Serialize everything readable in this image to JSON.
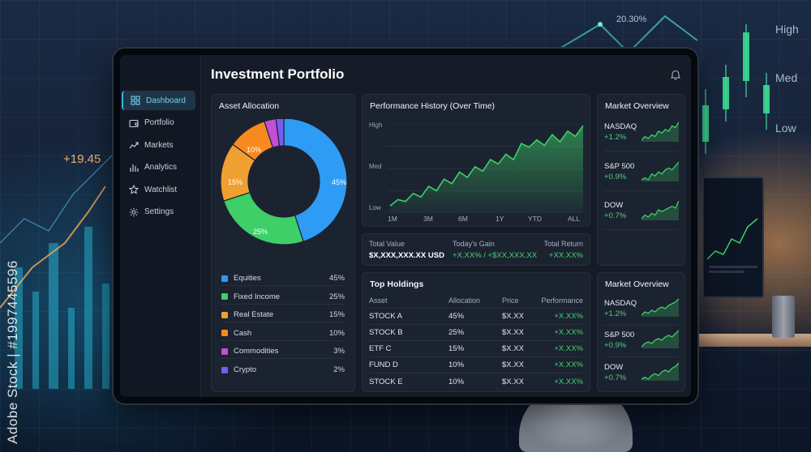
{
  "app": {
    "title": "Investment Portfolio"
  },
  "sidebar": {
    "items": [
      {
        "label": "Dashboard",
        "icon": "dashboard-grid-icon",
        "active": true
      },
      {
        "label": "Portfolio",
        "icon": "wallet-icon",
        "active": false
      },
      {
        "label": "Markets",
        "icon": "trend-line-icon",
        "active": false
      },
      {
        "label": "Analytics",
        "icon": "bar-chart-icon",
        "active": false
      },
      {
        "label": "Watchlist",
        "icon": "star-icon",
        "active": false
      },
      {
        "label": "Settings",
        "icon": "gear-icon",
        "active": false
      }
    ]
  },
  "allocation": {
    "title": "Asset Allocation",
    "items": [
      {
        "label": "Equities",
        "value": "45%",
        "percent": 45,
        "color": "#2e9cf5"
      },
      {
        "label": "Fixed Income",
        "value": "25%",
        "percent": 25,
        "color": "#3ecf68"
      },
      {
        "label": "Real Estate",
        "value": "15%",
        "percent": 15,
        "color": "#f0a030"
      },
      {
        "label": "Cash",
        "value": "10%",
        "percent": 10,
        "color": "#f78a1f"
      },
      {
        "label": "Commodities",
        "value": "3%",
        "percent": 3,
        "color": "#c24fd4"
      },
      {
        "label": "Crypto",
        "value": "2%",
        "percent": 2,
        "color": "#7a5cf0"
      }
    ]
  },
  "chart_data": {
    "type": "area",
    "title": "Performance History (Over Time)",
    "y_tick_labels": [
      "High",
      "Med",
      "Low"
    ],
    "x_tick_labels": [
      "1M",
      "3M",
      "6M",
      "1Y",
      "YTD",
      "ALL"
    ],
    "series": [
      {
        "values": [
          8,
          15,
          13,
          22,
          18,
          30,
          25,
          38,
          33,
          46,
          40,
          52,
          47,
          60,
          55,
          66,
          60,
          78,
          74,
          82,
          76,
          88,
          80,
          92,
          86,
          98
        ]
      }
    ],
    "ylim": [
      0,
      100
    ],
    "grid": true,
    "color": "#3ecf68"
  },
  "summary": {
    "total_value_label": "Total Value",
    "total_value": "$X,XXX,XXX.XX USD",
    "todays_gain_label": "Today's Gain",
    "todays_gain": "+X.XX% / +$XX,XXX.XX",
    "total_return_label": "Total Return",
    "total_return": "+XX.XX%"
  },
  "market_top": {
    "title": "Market Overview",
    "items": [
      {
        "name": "NASDAQ",
        "change": "+1.2%",
        "spark": [
          3,
          5,
          4,
          6,
          5,
          8,
          7,
          9,
          8,
          11,
          10,
          13
        ]
      },
      {
        "name": "S&P 500",
        "change": "+0.9%",
        "spark": [
          3,
          4,
          3,
          6,
          5,
          7,
          6,
          8,
          9,
          8,
          10,
          12
        ]
      },
      {
        "name": "DOW",
        "change": "+0.7%",
        "spark": [
          2,
          4,
          3,
          5,
          4,
          7,
          6,
          7,
          8,
          9,
          8,
          12
        ]
      }
    ]
  },
  "market_bottom": {
    "title": "Market Overview",
    "items": [
      {
        "name": "NASDAQ",
        "change": "+1.2%",
        "spark": [
          3,
          5,
          4,
          6,
          5,
          7,
          8,
          7,
          9,
          10,
          11,
          13
        ]
      },
      {
        "name": "S&P 500",
        "change": "+0.9%",
        "spark": [
          2,
          4,
          5,
          4,
          6,
          7,
          6,
          8,
          9,
          8,
          10,
          12
        ]
      },
      {
        "name": "DOW",
        "change": "+0.7%",
        "spark": [
          3,
          4,
          3,
          5,
          6,
          5,
          7,
          8,
          7,
          9,
          10,
          12
        ]
      }
    ]
  },
  "holdings": {
    "title": "Top Holdings",
    "headers": [
      "Asset",
      "Allocation",
      "Price",
      "Performance"
    ],
    "rows": [
      [
        "STOCK A",
        "45%",
        "$X.XX",
        "+X.XX%"
      ],
      [
        "STOCK B",
        "25%",
        "$X.XX",
        "+X.XX%"
      ],
      [
        "ETF C",
        "15%",
        "$X.XX",
        "+X.XX%"
      ],
      [
        "FUND D",
        "10%",
        "$X.XX",
        "+X.XX%"
      ],
      [
        "STOCK E",
        "10%",
        "$X.XX",
        "+X.XX%"
      ]
    ]
  },
  "background": {
    "plus_value": "+19.45",
    "percent_value": "20.30%",
    "scale_labels": [
      "High",
      "Med",
      "Low"
    ],
    "watermark_vertical": "Adobe Stock | #1997445596"
  }
}
